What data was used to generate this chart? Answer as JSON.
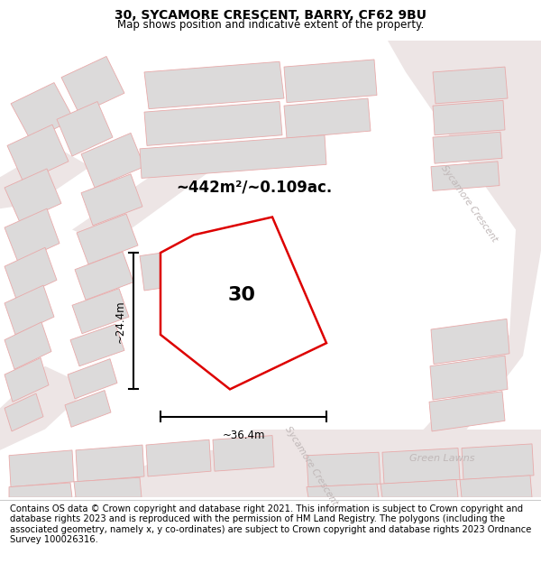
{
  "title": "30, SYCAMORE CRESCENT, BARRY, CF62 9BU",
  "subtitle": "Map shows position and indicative extent of the property.",
  "area_label": "~442m²/~0.109ac.",
  "number_label": "30",
  "dim_width": "~36.4m",
  "dim_height": "~24.4m",
  "footer": "Contains OS data © Crown copyright and database right 2021. This information is subject to Crown copyright and database rights 2023 and is reproduced with the permission of HM Land Registry. The polygons (including the associated geometry, namely x, y co-ordinates) are subject to Crown copyright and database rights 2023 Ordnance Survey 100026316.",
  "title_fontsize": 10,
  "subtitle_fontsize": 8.5,
  "footer_fontsize": 7.2,
  "map_bg": "#f9f5f5",
  "plot_color": "#dd0000",
  "plot_lw": 1.8,
  "building_fill": "#dcdada",
  "building_edge": "#e8aaaa",
  "building_lw": 0.6,
  "road_fill": "#f0e8e8",
  "street_label_color": "#c0b8b8",
  "street_label_size": 7.5,
  "road_edge_color": "#e8c0c0"
}
